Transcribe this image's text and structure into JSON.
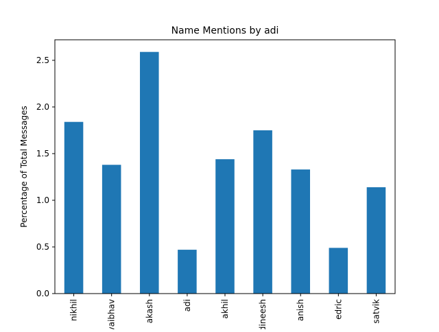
{
  "chart_data": {
    "type": "bar",
    "title": "Name Mentions by adi",
    "xlabel": "",
    "ylabel": "Percentage of Total Messages",
    "categories": [
      "nikhil",
      "vaibhav",
      "akash",
      "adi",
      "akhil",
      "dineesh",
      "anish",
      "edric",
      "satvik"
    ],
    "values": [
      1.84,
      1.38,
      2.59,
      0.47,
      1.44,
      1.75,
      1.33,
      0.49,
      1.14
    ],
    "ylim": [
      0,
      2.72
    ],
    "yticks": [
      0.0,
      0.5,
      1.0,
      1.5,
      2.0,
      2.5
    ],
    "ytick_labels": [
      "0.0",
      "0.5",
      "1.0",
      "1.5",
      "2.0",
      "2.5"
    ],
    "bar_color": "#1f77b4",
    "grid": false,
    "legend": "none"
  }
}
